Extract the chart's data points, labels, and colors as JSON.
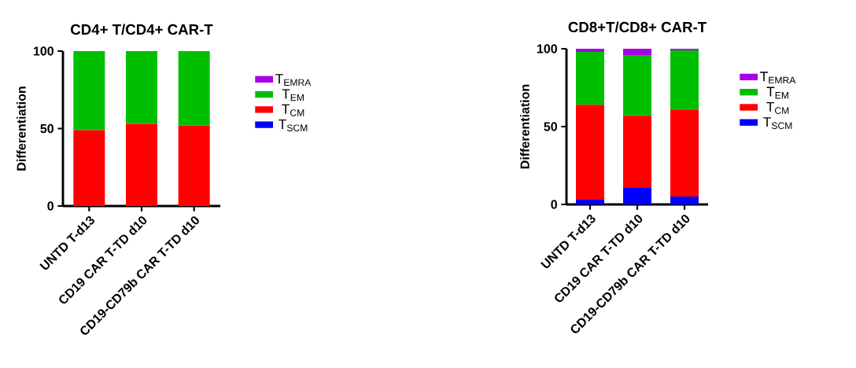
{
  "chart_data": [
    {
      "type": "bar",
      "title": "CD4+ T/CD4+ CAR-T",
      "ylabel": "Differentiation",
      "categories": [
        "UNTD T-d13",
        "CD19 CAR T-TD d10",
        "CD19-CD79b CAR T-TD d10"
      ],
      "stacked": true,
      "ylim": [
        0,
        100
      ],
      "yticks": [
        0,
        50,
        100
      ],
      "legend": "right",
      "series": [
        {
          "name": "T$_{SCM}$",
          "color": "#0000ff",
          "values": [
            0,
            0,
            0
          ]
        },
        {
          "name": "T$_{CM}$",
          "color": "#ff0000",
          "values": [
            49,
            53,
            52
          ]
        },
        {
          "name": "T$_{EM}$",
          "color": "#00bf00",
          "values": [
            51,
            47,
            48
          ]
        },
        {
          "name": "T$_{EMRA}$",
          "color": "#a600e6",
          "values": [
            0,
            0,
            0
          ]
        }
      ]
    },
    {
      "type": "bar",
      "title": "CD8+T/CD8+ CAR-T",
      "ylabel": "Differentiation",
      "categories": [
        "UNTD T-d13",
        "CD19 CAR T-TD d10",
        "CD19-CD79b CAR T-TD d10"
      ],
      "stacked": true,
      "ylim": [
        0,
        100
      ],
      "yticks": [
        0,
        50,
        100
      ],
      "legend": "right",
      "series": [
        {
          "name": "T$_{SCM}$",
          "color": "#0000ff",
          "values": [
            3,
            11,
            5
          ]
        },
        {
          "name": "T$_{CM}$",
          "color": "#ff0000",
          "values": [
            61,
            46,
            56
          ]
        },
        {
          "name": "T$_{EM}$",
          "color": "#00bf00",
          "values": [
            34,
            39,
            38
          ]
        },
        {
          "name": "T$_{EMRA}$",
          "color": "#a600e6",
          "values": [
            2,
            4,
            1
          ]
        }
      ]
    }
  ]
}
